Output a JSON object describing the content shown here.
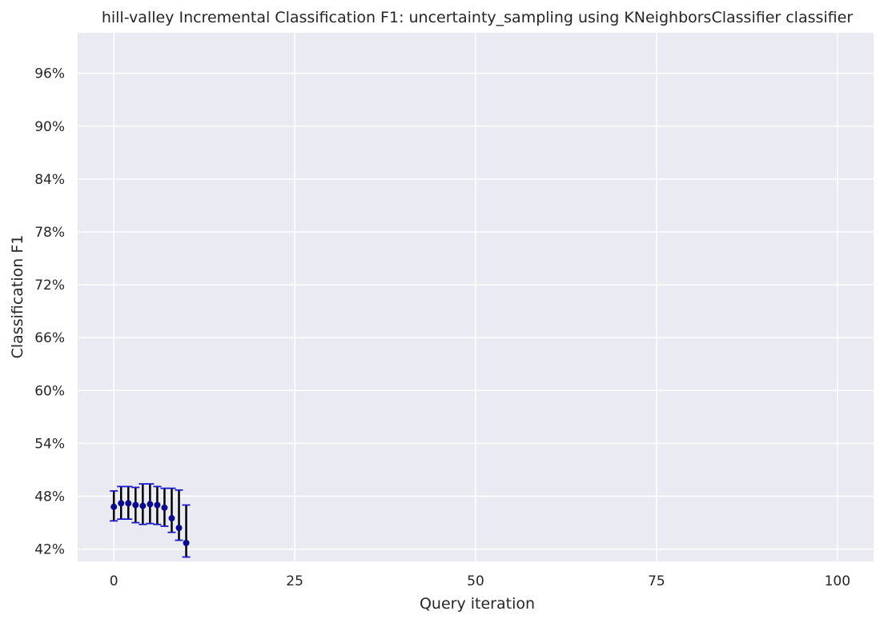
{
  "chart_data": {
    "type": "scatter",
    "title": "hill-valley Incremental Classification F1: uncertainty_sampling using KNeighborsClassifier classifier",
    "xlabel": "Query iteration",
    "ylabel": "Classification F1",
    "xlim": [
      -5,
      105
    ],
    "ylim": [
      40.6,
      100.6
    ],
    "x_ticks": [
      0,
      25,
      50,
      75,
      100
    ],
    "x_tick_labels": [
      "0",
      "25",
      "50",
      "75",
      "100"
    ],
    "y_ticks": [
      42,
      48,
      54,
      60,
      66,
      72,
      78,
      84,
      90,
      96
    ],
    "y_tick_labels": [
      "42%",
      "48%",
      "54%",
      "60%",
      "66%",
      "72%",
      "78%",
      "84%",
      "90%",
      "96%"
    ],
    "grid": true,
    "colors": {
      "background": "#EAEAF2",
      "marker": "#0A0A8C",
      "errorbar": "#000000",
      "cap": "#1A1ACC"
    },
    "series": [
      {
        "x": [
          0,
          1,
          2,
          3,
          4,
          5,
          6,
          7,
          8,
          9,
          10
        ],
        "y": [
          46.8,
          47.2,
          47.2,
          47.0,
          46.9,
          47.1,
          47.0,
          46.7,
          45.5,
          44.4,
          42.7
        ],
        "y_low": [
          45.2,
          45.4,
          45.4,
          45.0,
          44.8,
          44.9,
          44.8,
          44.6,
          43.9,
          43.0,
          41.1
        ],
        "y_high": [
          48.6,
          49.1,
          49.1,
          49.0,
          49.4,
          49.4,
          49.1,
          48.9,
          48.9,
          48.7,
          47.0
        ]
      }
    ]
  }
}
